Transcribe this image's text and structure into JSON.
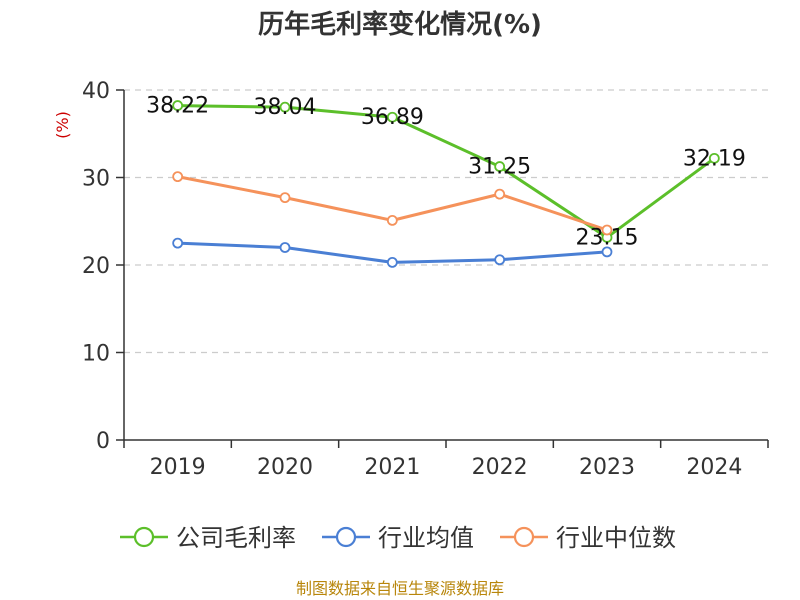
{
  "chart_data": {
    "type": "line",
    "title": "历年毛利率变化情况(%)",
    "ylabel": "(%)",
    "xlabel": "",
    "categories": [
      "2019",
      "2020",
      "2021",
      "2022",
      "2023",
      "2024"
    ],
    "ylim": [
      0,
      40
    ],
    "yticks": [
      0,
      10,
      20,
      30,
      40
    ],
    "grid": "horizontal-dashed",
    "legend_position": "bottom",
    "series": [
      {
        "name": "公司毛利率",
        "color": "#5cbf2a",
        "values": [
          38.22,
          38.04,
          36.89,
          31.25,
          23.15,
          32.19
        ],
        "labels": [
          "38.22",
          "38.04",
          "36.89",
          "31.25",
          "23.15",
          "32.19"
        ]
      },
      {
        "name": "行业均值",
        "color": "#4a7fd4",
        "values": [
          22.5,
          22.0,
          20.3,
          20.6,
          21.5,
          null
        ]
      },
      {
        "name": "行业中位数",
        "color": "#f5925b",
        "values": [
          30.1,
          27.7,
          25.1,
          28.1,
          24.0,
          null
        ]
      }
    ]
  },
  "footer": {
    "source": "制图数据来自恒生聚源数据库"
  }
}
